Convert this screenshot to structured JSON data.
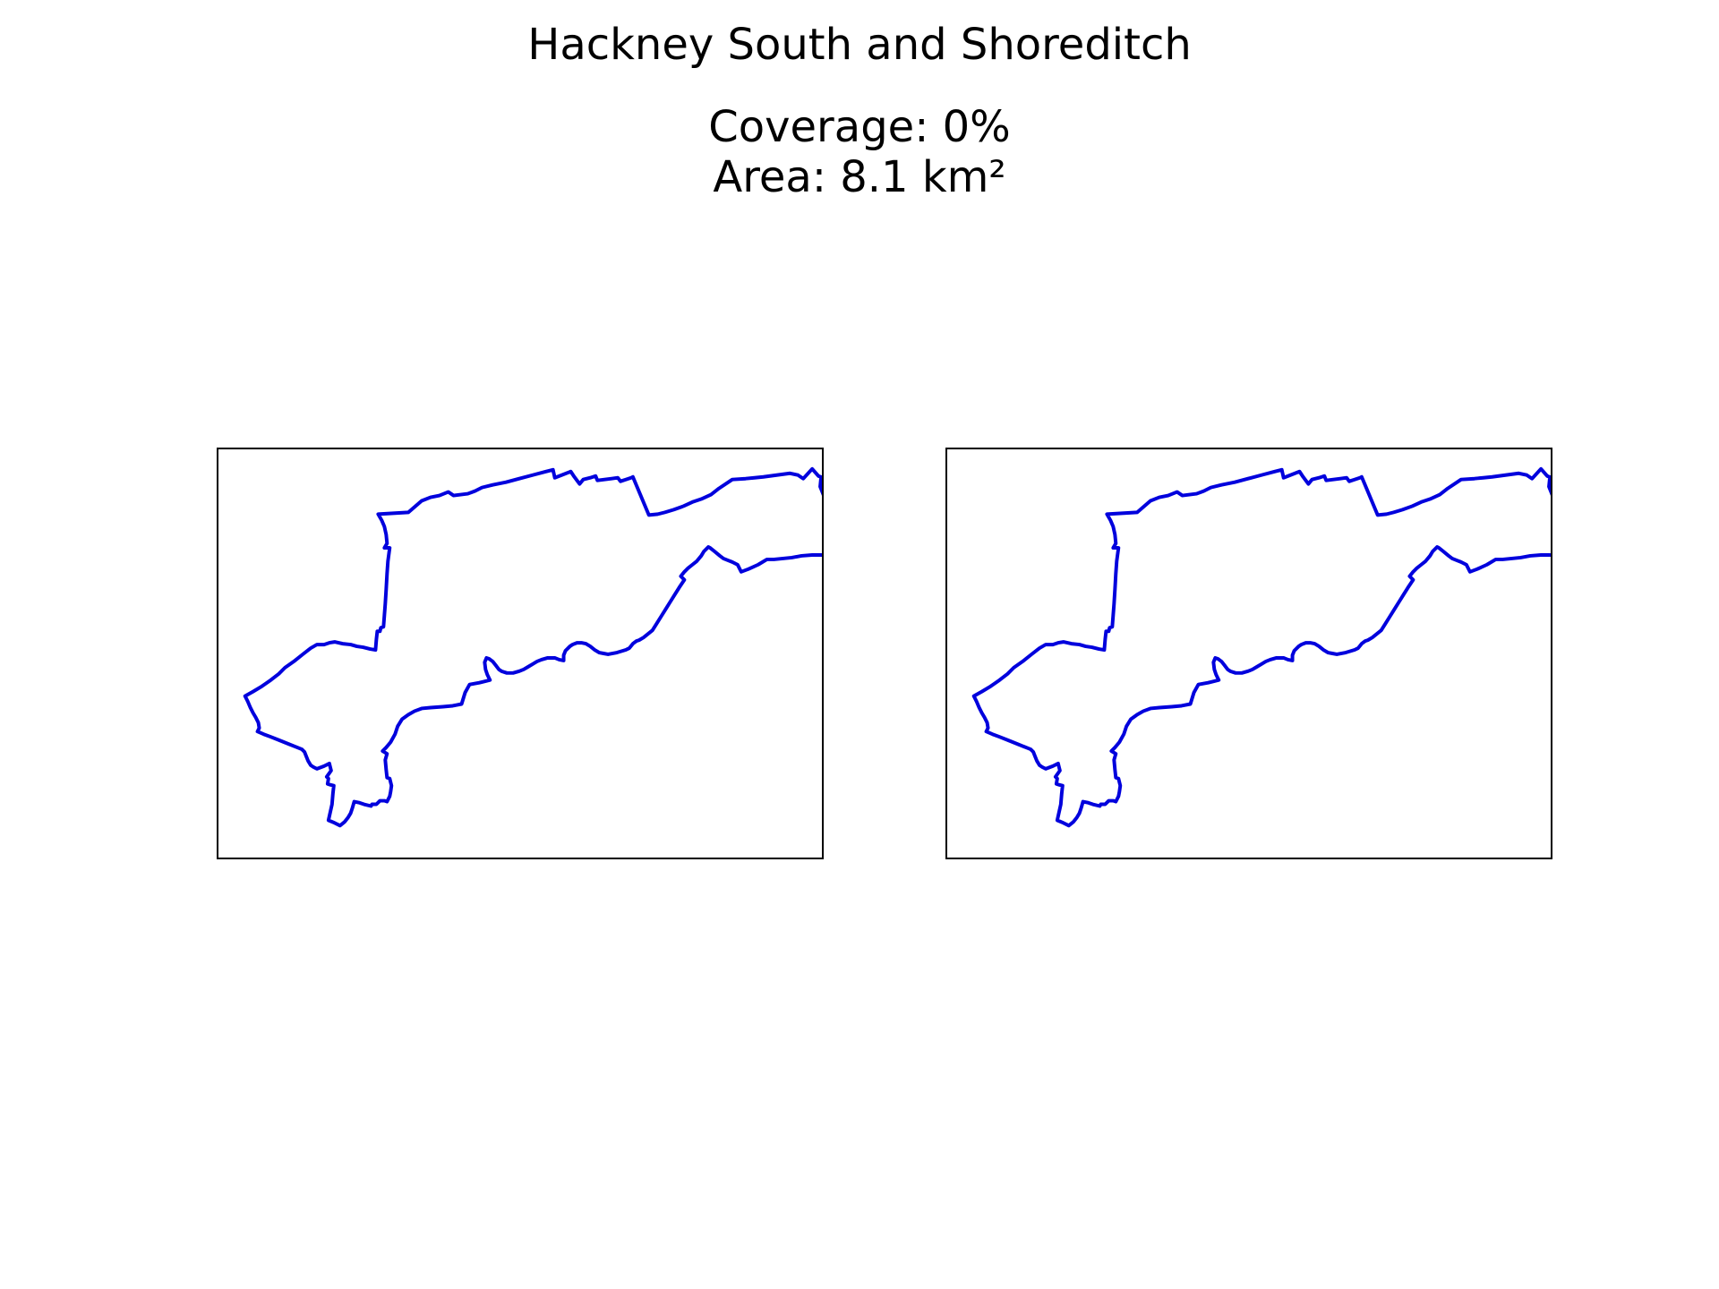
{
  "figure": {
    "title": "Hackney South and Shoreditch",
    "coverage_label": "Coverage: 0%",
    "area_label": "Area: 8.1 km²"
  },
  "map": {
    "region_name": "Hackney South and Shoreditch",
    "coverage_percent": 0,
    "area_km2": 8.1,
    "boundary_color": "#0000dd",
    "frame_color": "#000000",
    "panels": [
      {
        "id": "left",
        "content": "boundary-outline"
      },
      {
        "id": "right",
        "content": "boundary-outline"
      }
    ]
  }
}
